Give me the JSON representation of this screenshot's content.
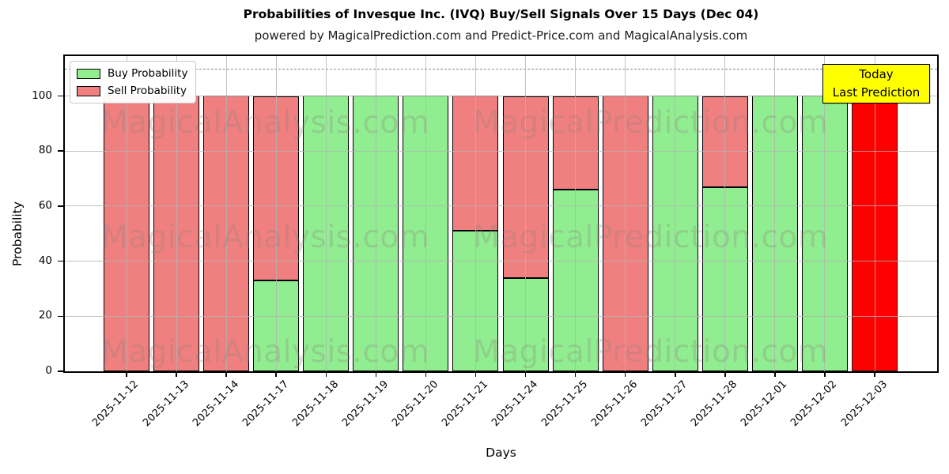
{
  "title": "Probabilities of Invesque Inc. (IVQ) Buy/Sell Signals Over 15 Days (Dec 04)",
  "subtitle": "powered by MagicalPrediction.com and Predict-Price.com and MagicalAnalysis.com",
  "axis": {
    "x_label": "Days",
    "y_label": "Probability"
  },
  "legend": {
    "buy_label": "Buy Probability",
    "sell_label": "Sell Probability"
  },
  "annotation": {
    "line1": "Today",
    "line2": "Last Prediction"
  },
  "watermark": {
    "left_text": "MagicalAnalysis.com",
    "right_text": "MagicalPrediction.com"
  },
  "colors": {
    "buy": "#90ee90",
    "sell": "#f08080",
    "highlight_fill": "#ff0000",
    "highlight_edge": "#ffa500",
    "grid": "#b3b3b3",
    "dashed_line": "#8a8a8a",
    "annotation_bg": "#ffff00"
  },
  "chart_data": {
    "type": "bar",
    "stacked": true,
    "title": "Probabilities of Invesque Inc. (IVQ) Buy/Sell Signals Over 15 Days (Dec 04)",
    "xlabel": "Days",
    "ylabel": "Probability",
    "ylim": [
      0,
      115
    ],
    "yticks": [
      0,
      20,
      40,
      60,
      80,
      100
    ],
    "reference_line_y": 110,
    "grid": true,
    "legend_position": "upper left",
    "categories": [
      "2025-11-12",
      "2025-11-13",
      "2025-11-14",
      "2025-11-17",
      "2025-11-18",
      "2025-11-19",
      "2025-11-20",
      "2025-11-21",
      "2025-11-24",
      "2025-11-25",
      "2025-11-26",
      "2025-11-27",
      "2025-11-28",
      "2025-12-01",
      "2025-12-02",
      "2025-12-03"
    ],
    "series": [
      {
        "name": "Buy Probability",
        "color": "#90ee90",
        "values": [
          0,
          0,
          0,
          33,
          100,
          100,
          100,
          51,
          34,
          66,
          0,
          100,
          67,
          100,
          100,
          0
        ]
      },
      {
        "name": "Sell Probability",
        "color": "#f08080",
        "values": [
          100,
          100,
          100,
          67,
          0,
          0,
          0,
          49,
          66,
          34,
          100,
          0,
          33,
          0,
          0,
          100
        ]
      }
    ],
    "highlight_bar": {
      "index": 15,
      "date": "2025-12-03",
      "fill": "#ff0000",
      "edge_top": "#ffa500",
      "label": "Today Last Prediction"
    }
  }
}
